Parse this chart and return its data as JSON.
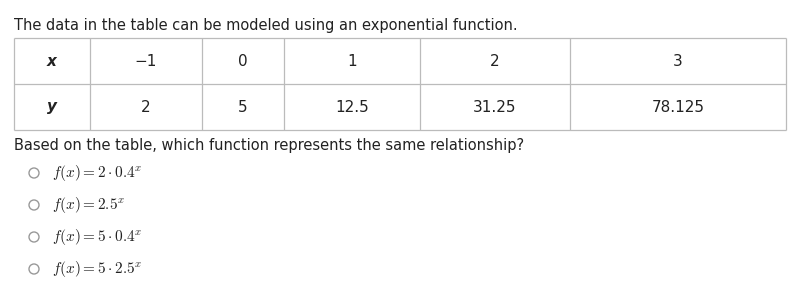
{
  "title_text": "The data in the table can be modeled using an exponential function.",
  "table_x_header": "x",
  "table_y_header": "y",
  "x_values": [
    "−1",
    "0",
    "1",
    "2",
    "3"
  ],
  "y_values": [
    "2",
    "5",
    "12.5",
    "31.25",
    "78.125"
  ],
  "question": "Based on the table, which function represents the same relationship?",
  "option_labels": [
    "$f(x) = 2 \\cdot 0.4^{x}$",
    "$f(x) = 2.5^{x}$",
    "$f(x) = 5 \\cdot 0.4^{x}$",
    "$f(x) = 5 \\cdot 2.5^{x}$"
  ],
  "bg_color": "#ffffff",
  "text_color": "#222222",
  "table_line_color": "#bbbbbb",
  "font_size_title": 10.5,
  "font_size_table": 11,
  "font_size_question": 10.5,
  "font_size_options": 11,
  "fig_width": 8.0,
  "fig_height": 3.04,
  "dpi": 100
}
